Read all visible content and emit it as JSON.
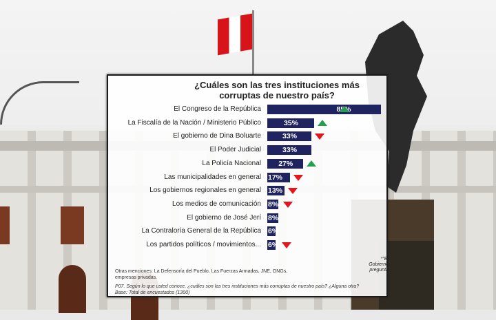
{
  "chart_data": {
    "type": "bar",
    "orientation": "horizontal",
    "title": "¿Cuáles son las tres instituciones más corruptas de nuestro país?",
    "categories": [
      "El Congreso de la República",
      "La Fiscalía de la Nación / Ministerio Público",
      "El gobierno de Dina Boluarte",
      "El Poder Judicial",
      "La Policía Nacional",
      "Las municipalidades en general",
      "Los gobiernos regionales en general",
      "Los medios de comunicación",
      "El gobierno de José Jerí",
      "La Contraloría General de la República",
      "Los partidos políticos / movimientos..."
    ],
    "values": [
      85,
      35,
      33,
      33,
      27,
      17,
      13,
      8,
      8,
      6,
      6
    ],
    "value_labels": [
      "85%",
      "35%",
      "33%",
      "33%",
      "27%",
      "17%",
      "13%",
      "8%",
      "8%",
      "6%",
      "6%"
    ],
    "trend": [
      "up",
      "up",
      "down",
      "none",
      "up",
      "down",
      "down",
      "down",
      "none",
      "none",
      "down"
    ],
    "unit": "%",
    "xlim": [
      0,
      85
    ],
    "grid": false,
    "legend": "none",
    "colors": {
      "bar": "#1f2460",
      "up": "#23a04f",
      "down": "#e2161b"
    }
  },
  "notes": {
    "others": "Otras menciones: La Defensoría del Pueblo, Las Fuerzas Armadas, JNE, ONGs, empresas privadas.",
    "question": "P07. Según lo que usted conoce, ¿cuáles son las tres instituciones más corruptas de nuestro país? ¿Alguna otra?",
    "base": "Base: Total de encuestados  (1300)",
    "side_line1": "*\"El Gobierno",
    "side_line2": "pregunta"
  }
}
